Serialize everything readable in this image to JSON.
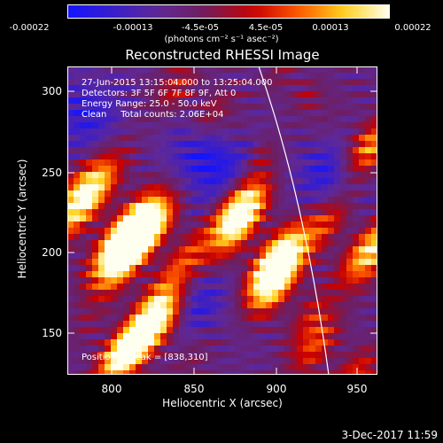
{
  "colorbar": {
    "ticks": [
      "-0.00022",
      "-0.00013",
      "-4.5e-05",
      "4.5e-05",
      "0.00013",
      "0.00022"
    ],
    "units": "(photons cm⁻² s⁻¹ asec⁻²)"
  },
  "title": "Reconstructed RHESSI Image",
  "info": {
    "time": "27-Jun-2015 13:15:04.000 to 13:25:04.000",
    "detectors": "Detectors: 3F 5F 6F 7F 8F 9F, Att 0",
    "energy": "Energy Range: 25.0 - 50.0 keV",
    "clean": "Clean     Total counts: 2.06E+04",
    "peak": "Position of Peak = [838,310]"
  },
  "axes": {
    "xlabel": "Heliocentric X (arcsec)",
    "ylabel": "Heliocentric Y (arcsec)",
    "xticks": [
      "800",
      "850",
      "900",
      "950"
    ],
    "yticks": [
      "300",
      "250",
      "200",
      "150"
    ]
  },
  "footer": {
    "date": "3-Dec-2017 11:59"
  }
}
